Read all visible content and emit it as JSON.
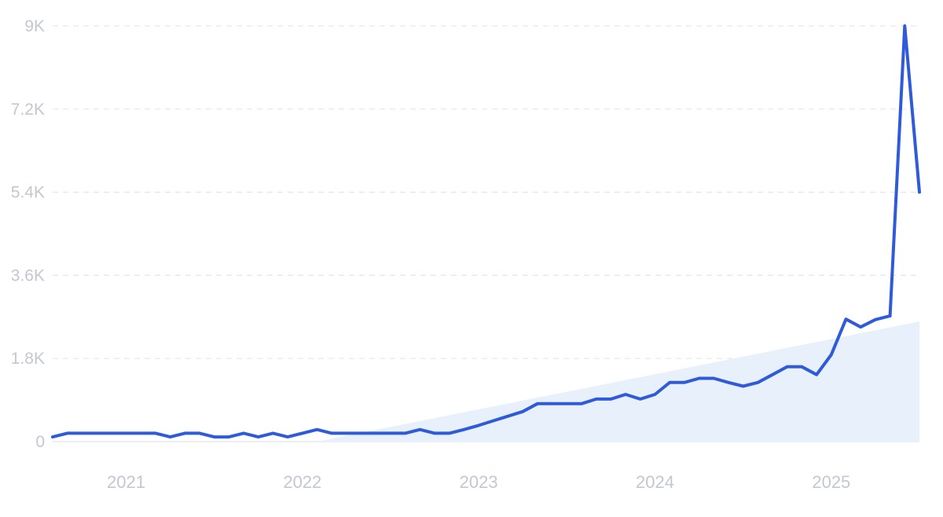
{
  "colors": {
    "line": "#2f5bd8",
    "trend_fill": "#e8f0fc",
    "grid": "#e3e6ee",
    "tick_text": "#c3c7d1"
  },
  "chart_data": {
    "type": "line",
    "title": "",
    "xlabel": "",
    "ylabel": "",
    "ylim": [
      0,
      9000
    ],
    "xlim": [
      "2020-08",
      "2025-07"
    ],
    "yticks": [
      0,
      1800,
      3600,
      5400,
      7200,
      9000
    ],
    "ytick_labels": [
      "0",
      "1.8K",
      "3.6K",
      "5.4K",
      "7.2K",
      "9K"
    ],
    "xticks": [
      "2021-01",
      "2022-01",
      "2023-01",
      "2024-01",
      "2025-01"
    ],
    "xtick_labels": [
      "2021",
      "2022",
      "2023",
      "2024",
      "2025"
    ],
    "grid": true,
    "legend": "none",
    "trend_area": {
      "start": [
        "2022-02",
        0
      ],
      "end": [
        "2025-07",
        2600
      ]
    },
    "series": [
      {
        "x": [
          "2020-08",
          "2020-09",
          "2020-10",
          "2020-11",
          "2020-12",
          "2021-01",
          "2021-02",
          "2021-03",
          "2021-04",
          "2021-05",
          "2021-06",
          "2021-07",
          "2021-08",
          "2021-09",
          "2021-10",
          "2021-11",
          "2021-12",
          "2022-01",
          "2022-02",
          "2022-03",
          "2022-04",
          "2022-05",
          "2022-06",
          "2022-07",
          "2022-08",
          "2022-09",
          "2022-10",
          "2022-11",
          "2022-12",
          "2023-01",
          "2023-02",
          "2023-03",
          "2023-04",
          "2023-05",
          "2023-06",
          "2023-07",
          "2023-08",
          "2023-09",
          "2023-10",
          "2023-11",
          "2023-12",
          "2024-01",
          "2024-02",
          "2024-03",
          "2024-04",
          "2024-05",
          "2024-06",
          "2024-07",
          "2024-08",
          "2024-09",
          "2024-10",
          "2024-11",
          "2024-12",
          "2025-01",
          "2025-02",
          "2025-03",
          "2025-04",
          "2025-05",
          "2025-06",
          "2025-07"
        ],
        "values": [
          100,
          180,
          180,
          180,
          180,
          180,
          180,
          180,
          100,
          180,
          180,
          100,
          100,
          180,
          100,
          180,
          100,
          180,
          260,
          180,
          180,
          180,
          180,
          180,
          180,
          260,
          180,
          180,
          260,
          350,
          450,
          550,
          650,
          820,
          820,
          820,
          820,
          920,
          920,
          1020,
          920,
          1020,
          1280,
          1280,
          1370,
          1370,
          1280,
          1200,
          1280,
          1450,
          1620,
          1620,
          1450,
          1880,
          2650,
          2480,
          2640,
          2720,
          9000,
          5400
        ]
      }
    ]
  }
}
